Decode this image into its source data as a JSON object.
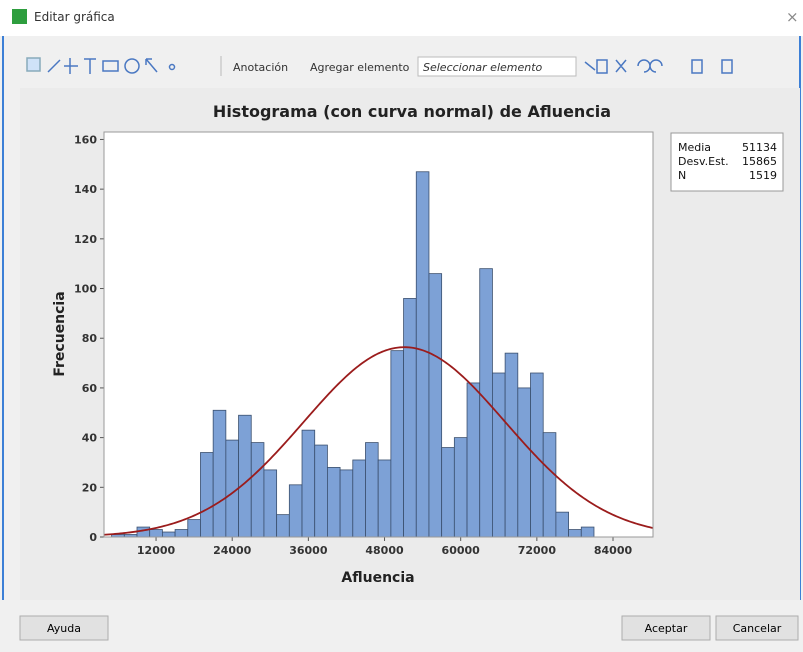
{
  "window": {
    "title": "Editar gráfica"
  },
  "toolbar": {
    "annotation": "Anotación",
    "add_element": "Agregar elemento",
    "select_element": "Seleccionar elemento"
  },
  "buttons": {
    "help": "Ayuda",
    "ok": "Aceptar",
    "cancel": "Cancelar"
  },
  "chart_data": {
    "type": "histogram",
    "title": "Histograma (con curva normal) de Afluencia",
    "x_label": "Afluencia",
    "y_label": "Frecuencia",
    "bins": [
      5000,
      7000,
      9000,
      11000,
      13000,
      15000,
      17000,
      19000,
      21000,
      23000,
      25000,
      27000,
      29000,
      31000,
      33000,
      35000,
      37000,
      39000,
      41000,
      43000,
      45000,
      47000,
      49000,
      51000,
      53000,
      55000,
      57000,
      59000,
      61000,
      63000,
      65000,
      67000,
      69000,
      71000,
      73000,
      75000,
      77000,
      79000,
      81000
    ],
    "values": [
      1,
      1,
      4,
      3,
      2,
      3,
      7,
      34,
      51,
      39,
      49,
      38,
      27,
      9,
      21,
      43,
      37,
      28,
      27,
      31,
      38,
      31,
      75,
      96,
      147,
      106,
      36,
      40,
      62,
      108,
      66,
      74,
      60,
      66,
      42,
      10,
      3,
      4
    ],
    "color": "#7da1d6",
    "curve_color": "#9b1c1c",
    "xlim": [
      3800,
      90300
    ],
    "xticks": [
      12000,
      24000,
      36000,
      48000,
      60000,
      72000,
      84000
    ],
    "ylim": [
      0,
      163
    ],
    "yticks": [
      0,
      20,
      40,
      60,
      80,
      100,
      120,
      140,
      160
    ],
    "stats": {
      "labels": [
        "Media",
        "Desv.Est.",
        "N"
      ],
      "values": [
        51134,
        15865,
        1519
      ]
    }
  }
}
